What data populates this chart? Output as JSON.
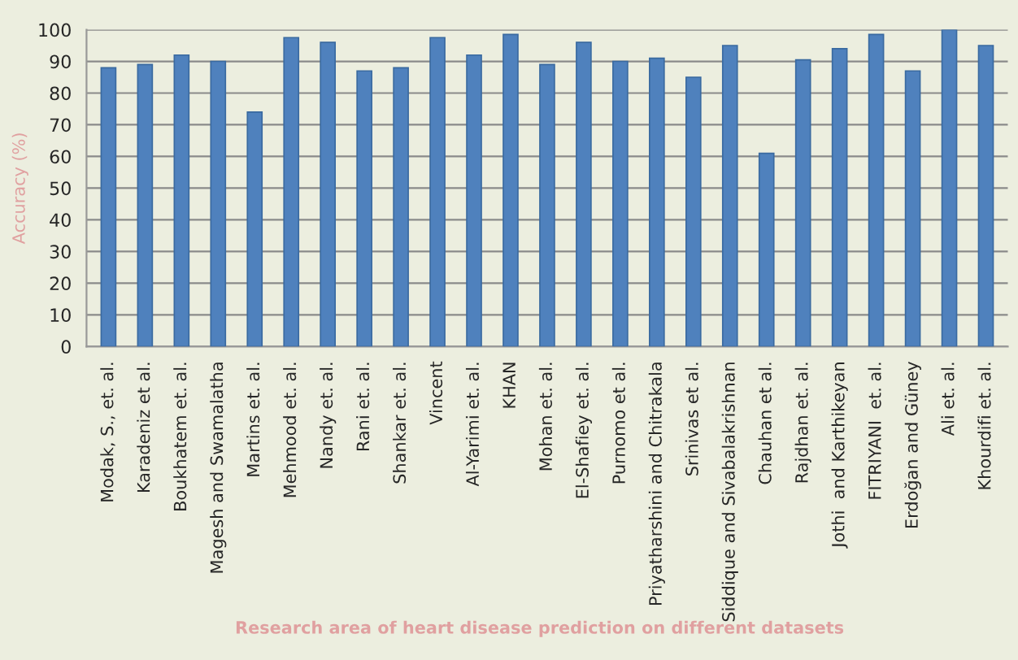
{
  "chart_data": {
    "type": "bar",
    "xlabel": "Research area of heart disease prediction on different datasets",
    "ylabel": "Accuracy (%)",
    "categories": [
      "Modak, S., et. al.",
      "Karadeniz et al.",
      "Boukhatem et. al.",
      "Magesh and Swamalatha",
      "Martins et. al.",
      "Mehmood et. al.",
      "Nandy et. al.",
      "Rani et. al.",
      "Shankar et. al.",
      "Vincent",
      "Al-Yarimi et. al.",
      "KHAN",
      "Mohan et. al.",
      "El-Shafiey et. al.",
      "Purnomo et al.",
      "Priyatharshini and Chitrakala",
      "Srinivas et al.",
      "Siddique and Sivabalakrishnan",
      "Chauhan et al.",
      "Rajdhan et. al.",
      "Jothi  and Karthikeyan",
      "FITRIYANI  et. al.",
      "Erdoğan and Güney",
      "Ali et. al.",
      "Khourdifi et. al."
    ],
    "values": [
      88,
      89,
      92,
      90,
      74,
      97.5,
      96,
      87,
      88,
      97.5,
      92,
      98.5,
      89,
      96,
      90,
      91,
      85,
      95,
      61,
      90.5,
      94,
      98.5,
      87,
      100,
      95
    ],
    "color": "#4f81bd",
    "ylim": [
      0,
      100
    ],
    "yticks": [
      0,
      10,
      20,
      30,
      40,
      50,
      60,
      70,
      80,
      90,
      100
    ],
    "grid": "y"
  }
}
